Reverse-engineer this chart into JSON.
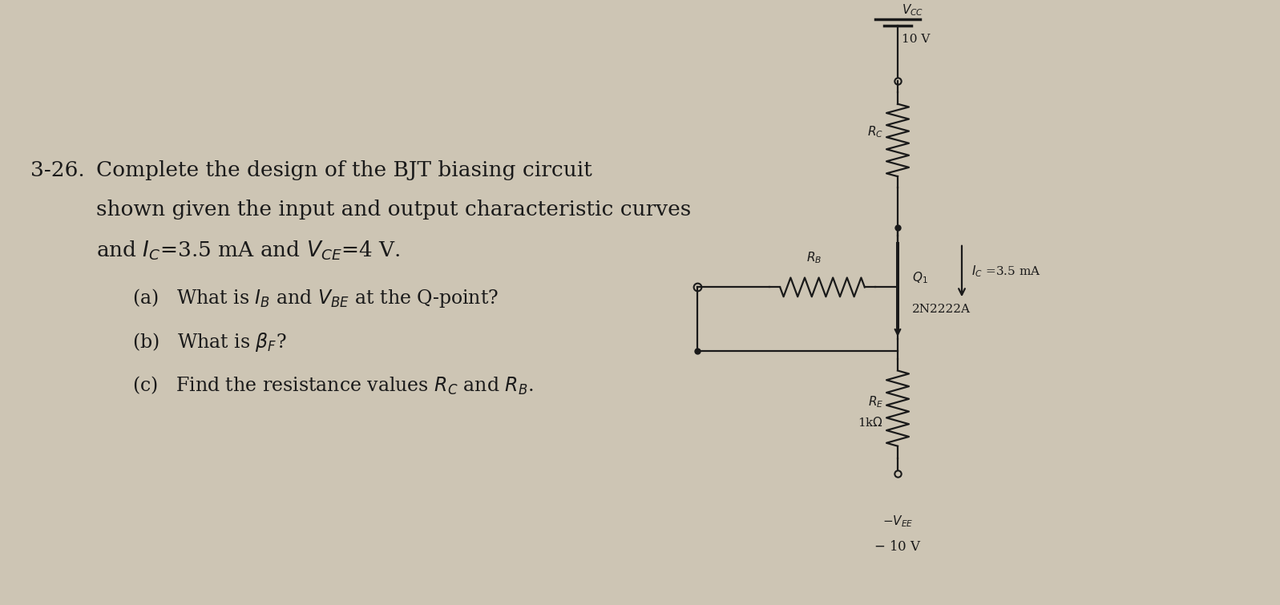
{
  "bg_color": "#cdc5b4",
  "text_color": "#1a1a1a",
  "problem_number": "3-26.",
  "problem_text_line1": "Complete the design of the BJT biasing circuit",
  "problem_text_line2": "shown given the input and output characteristic curves",
  "problem_text_line3": "and $I_C$=3.5 mA and $V_{CE}$=4 V.",
  "part_a": "(a)   What is $I_B$ and $V_{BE}$ at the Q-point?",
  "part_b": "(b)   What is $\\beta_F$?",
  "part_c": "(c)   Find the resistance values $R_C$ and $R_B$.",
  "vcc_label": "$V_{CC}$",
  "vcc_value": "10 V",
  "vee_label_line1": "$-$$V_{EE}$",
  "vee_value": "- 10 V",
  "rc_label": "$R_C$",
  "rb_label": "$R_B$",
  "re_label": "$R_E$",
  "re_value": "1kΩ",
  "ic_label": "$I_C$ =3.5 mA",
  "q1_label": "$Q_1$",
  "transistor_label": "2N2222A"
}
